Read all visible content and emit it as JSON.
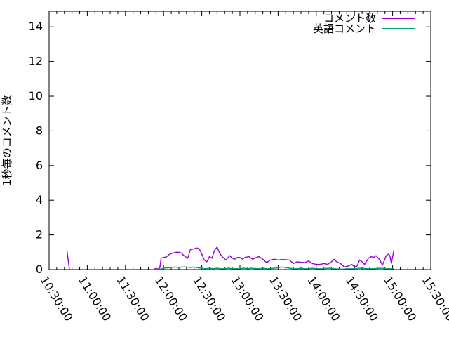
{
  "page": {
    "background": "#ffffff",
    "text_color": "#000000"
  },
  "chart_data": {
    "type": "line",
    "title": "",
    "xlabel": "",
    "ylabel": "1秒毎のコメント数",
    "grid": false,
    "legend_position": "top-right",
    "x_tick_labels": [
      "10:30:00",
      "11:00:00",
      "11:30:00",
      "12:00:00",
      "12:30:00",
      "13:00:00",
      "13:30:00",
      "14:00:00",
      "14:30:00",
      "15:00:00",
      "15:30:00"
    ],
    "x_major_interval_minutes": 30,
    "x_range_minutes": [
      0,
      300
    ],
    "y_ticks": [
      0,
      2,
      4,
      6,
      8,
      10,
      12,
      14
    ],
    "ylim": [
      0,
      14.9
    ],
    "series": [
      {
        "name": "コメント数",
        "color": "#9400d3",
        "points": [
          [
            "10:44",
            1.1
          ],
          [
            "10:46",
            0
          ],
          null,
          [
            "11:53",
            0.05
          ],
          [
            "11:56",
            0.05
          ],
          [
            "11:57",
            0.1
          ],
          [
            "11:58",
            0.65
          ],
          [
            "12:00",
            0.7
          ],
          [
            "12:02",
            0.72
          ],
          [
            "12:04",
            0.85
          ],
          [
            "12:07",
            0.95
          ],
          [
            "12:10",
            1.0
          ],
          [
            "12:12",
            1.0
          ],
          [
            "12:14",
            0.95
          ],
          [
            "12:16",
            0.8
          ],
          [
            "12:19",
            0.65
          ],
          [
            "12:21",
            1.15
          ],
          [
            "12:24",
            1.2
          ],
          [
            "12:26",
            1.25
          ],
          [
            "12:28",
            1.2
          ],
          [
            "12:30",
            0.9
          ],
          [
            "12:32",
            0.55
          ],
          [
            "12:34",
            0.45
          ],
          [
            "12:36",
            0.75
          ],
          [
            "12:38",
            0.65
          ],
          [
            "12:40",
            1.1
          ],
          [
            "12:42",
            1.3
          ],
          [
            "12:44",
            0.95
          ],
          [
            "12:46",
            0.75
          ],
          [
            "12:49",
            0.55
          ],
          [
            "12:52",
            0.8
          ],
          [
            "12:54",
            0.65
          ],
          [
            "12:56",
            0.6
          ],
          [
            "12:58",
            0.7
          ],
          [
            "13:00",
            0.7
          ],
          [
            "13:02",
            0.6
          ],
          [
            "13:04",
            0.7
          ],
          [
            "13:07",
            0.75
          ],
          [
            "13:10",
            0.6
          ],
          [
            "13:13",
            0.7
          ],
          [
            "13:15",
            0.75
          ],
          [
            "13:18",
            0.6
          ],
          [
            "13:21",
            0.4
          ],
          [
            "13:24",
            0.55
          ],
          [
            "13:27",
            0.6
          ],
          [
            "13:30",
            0.55
          ],
          [
            "13:33",
            0.58
          ],
          [
            "13:36",
            0.57
          ],
          [
            "13:39",
            0.55
          ],
          [
            "13:42",
            0.35
          ],
          [
            "13:45",
            0.45
          ],
          [
            "13:48",
            0.42
          ],
          [
            "13:51",
            0.4
          ],
          [
            "13:54",
            0.5
          ],
          [
            "13:57",
            0.35
          ],
          [
            "14:00",
            0.3
          ],
          [
            "14:03",
            0.3
          ],
          [
            "14:06",
            0.35
          ],
          [
            "14:09",
            0.3
          ],
          [
            "14:12",
            0.45
          ],
          [
            "14:14",
            0.6
          ],
          [
            "14:16",
            0.45
          ],
          [
            "14:19",
            0.35
          ],
          [
            "14:22",
            0.15
          ],
          [
            "14:25",
            0.2
          ],
          [
            "14:28",
            0.3
          ],
          [
            "14:30",
            0.15
          ],
          [
            "14:32",
            0.2
          ],
          [
            "14:34",
            0.55
          ],
          [
            "14:36",
            0.45
          ],
          [
            "14:38",
            0.3
          ],
          [
            "14:41",
            0.65
          ],
          [
            "14:43",
            0.75
          ],
          [
            "14:45",
            0.7
          ],
          [
            "14:47",
            0.8
          ],
          [
            "14:50",
            0.55
          ],
          [
            "14:52",
            0.25
          ],
          [
            "14:55",
            0.8
          ],
          [
            "14:57",
            0.9
          ],
          [
            "14:58",
            0.75
          ],
          [
            "14:59",
            0.35
          ],
          [
            "15:01",
            1.1
          ]
        ]
      },
      {
        "name": "英語コメント",
        "color": "#009e73",
        "points": [
          [
            "11:53",
            0
          ],
          [
            "11:57",
            0.02
          ],
          [
            "12:00",
            0.08
          ],
          [
            "12:03",
            0.1
          ],
          [
            "12:06",
            0.12
          ],
          [
            "12:09",
            0.15
          ],
          [
            "12:12",
            0.12
          ],
          [
            "12:15",
            0.15
          ],
          [
            "12:18",
            0.15
          ],
          [
            "12:21",
            0.12
          ],
          [
            "12:24",
            0.15
          ],
          [
            "12:27",
            0.1
          ],
          [
            "12:30",
            0.08
          ],
          [
            "12:33",
            0.05
          ],
          [
            "12:36",
            0.08
          ],
          [
            "12:39",
            0.05
          ],
          [
            "12:42",
            0.08
          ],
          [
            "12:45",
            0.05
          ],
          [
            "12:48",
            0.05
          ],
          [
            "12:51",
            0.08
          ],
          [
            "12:54",
            0.05
          ],
          [
            "12:57",
            0.05
          ],
          [
            "13:00",
            0.05
          ],
          [
            "13:03",
            0.08
          ],
          [
            "13:06",
            0.05
          ],
          [
            "13:09",
            0.08
          ],
          [
            "13:12",
            0.05
          ],
          [
            "13:15",
            0.05
          ],
          [
            "13:18",
            0.08
          ],
          [
            "13:21",
            0.05
          ],
          [
            "13:24",
            0.05
          ],
          [
            "13:27",
            0.08
          ],
          [
            "13:30",
            0.1
          ],
          [
            "13:33",
            0.15
          ],
          [
            "13:36",
            0.12
          ],
          [
            "13:39",
            0.08
          ],
          [
            "13:42",
            0.05
          ],
          [
            "13:45",
            0.05
          ],
          [
            "13:48",
            0.08
          ],
          [
            "13:51",
            0.05
          ],
          [
            "13:54",
            0.05
          ],
          [
            "13:57",
            0.08
          ],
          [
            "14:00",
            0.05
          ],
          [
            "14:05",
            0.05
          ],
          [
            "14:10",
            0.08
          ],
          [
            "14:15",
            0.05
          ],
          [
            "14:20",
            0.03
          ],
          [
            "14:25",
            0.05
          ],
          [
            "14:30",
            0.05
          ],
          [
            "14:35",
            0.08
          ],
          [
            "14:40",
            0.05
          ],
          [
            "14:45",
            0.05
          ],
          [
            "14:50",
            0.08
          ],
          [
            "14:55",
            0.05
          ],
          [
            "15:00",
            0.05
          ],
          [
            "15:01",
            0.05
          ]
        ]
      }
    ]
  }
}
